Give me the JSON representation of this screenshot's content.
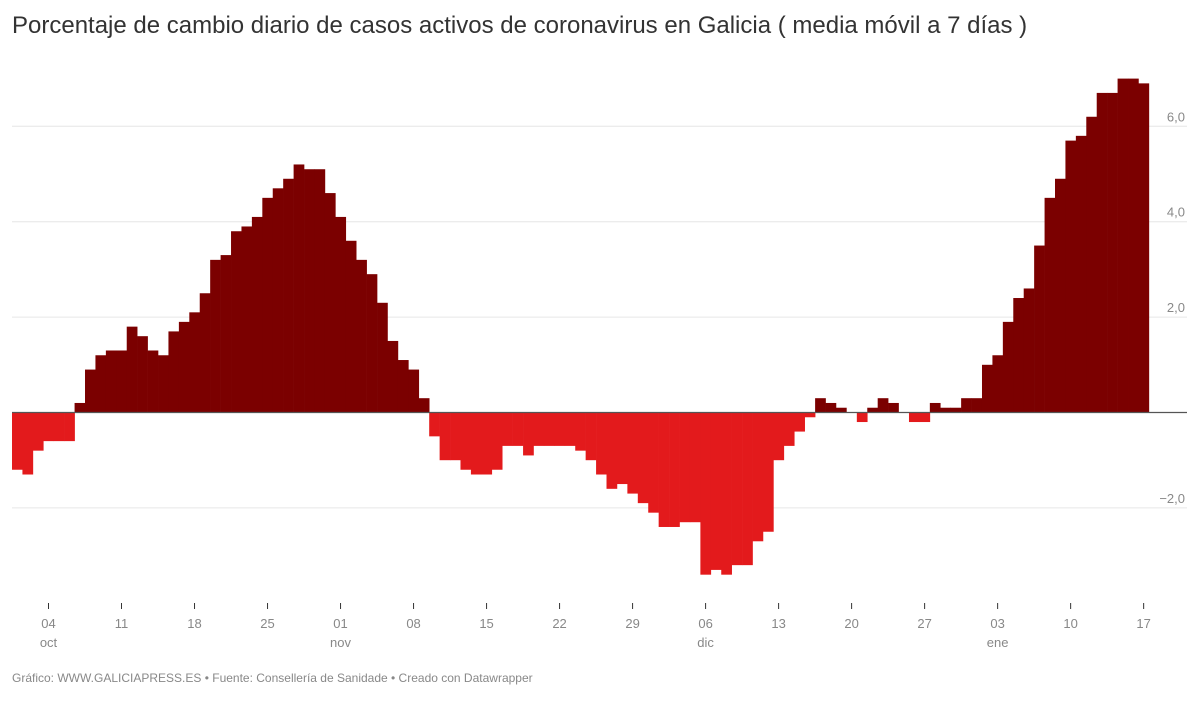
{
  "title": "Porcentaje de cambio diario de casos activos de coronavirus en Galicia ( media móvil a 7 días )",
  "footer": "Gráfico: WWW.GALICIAPRESS.ES • Fuente: Consellería de Sanidade • Creado con Datawrapper",
  "colors": {
    "positive": "#7b0000",
    "negative": "#e31a1c",
    "grid": "#e6e6e6",
    "axis": "#555555",
    "label": "#888888"
  },
  "chart_data": {
    "type": "bar",
    "title": "Porcentaje de cambio diario de casos activos de coronavirus en Galicia ( media móvil a 7 días )",
    "xlabel": "",
    "ylabel": "",
    "ylim": [
      -3.8,
      7.2
    ],
    "grid": true,
    "y_ticks": [
      {
        "value": 6.0,
        "label": "6,0"
      },
      {
        "value": 4.0,
        "label": "4,0"
      },
      {
        "value": 2.0,
        "label": "2,0"
      },
      {
        "value": -2.0,
        "label": "−2,0"
      }
    ],
    "x_ticks": [
      {
        "index": 3,
        "day": "04",
        "month": "oct"
      },
      {
        "index": 10,
        "day": "11",
        "month": ""
      },
      {
        "index": 17,
        "day": "18",
        "month": ""
      },
      {
        "index": 24,
        "day": "25",
        "month": ""
      },
      {
        "index": 31,
        "day": "01",
        "month": "nov"
      },
      {
        "index": 38,
        "day": "08",
        "month": ""
      },
      {
        "index": 45,
        "day": "15",
        "month": ""
      },
      {
        "index": 52,
        "day": "22",
        "month": ""
      },
      {
        "index": 59,
        "day": "29",
        "month": ""
      },
      {
        "index": 66,
        "day": "06",
        "month": "dic"
      },
      {
        "index": 73,
        "day": "13",
        "month": ""
      },
      {
        "index": 80,
        "day": "20",
        "month": ""
      },
      {
        "index": 87,
        "day": "27",
        "month": ""
      },
      {
        "index": 94,
        "day": "03",
        "month": "ene"
      },
      {
        "index": 101,
        "day": "10",
        "month": ""
      },
      {
        "index": 108,
        "day": "17",
        "month": ""
      }
    ],
    "x_start": "01 oct",
    "x_end": "17 ene",
    "values": [
      -1.2,
      -1.3,
      -0.8,
      -0.6,
      -0.6,
      -0.6,
      0.2,
      0.9,
      1.2,
      1.3,
      1.3,
      1.8,
      1.6,
      1.3,
      1.2,
      1.7,
      1.9,
      2.1,
      2.5,
      3.2,
      3.3,
      3.8,
      3.9,
      4.1,
      4.5,
      4.7,
      4.9,
      5.2,
      5.1,
      5.1,
      4.6,
      4.1,
      3.6,
      3.2,
      2.9,
      2.3,
      1.5,
      1.1,
      0.9,
      0.3,
      -0.5,
      -1.0,
      -1.0,
      -1.2,
      -1.3,
      -1.3,
      -1.2,
      -0.7,
      -0.7,
      -0.9,
      -0.7,
      -0.7,
      -0.7,
      -0.7,
      -0.8,
      -1.0,
      -1.3,
      -1.6,
      -1.5,
      -1.7,
      -1.9,
      -2.1,
      -2.4,
      -2.4,
      -2.3,
      -2.3,
      -3.4,
      -3.3,
      -3.4,
      -3.2,
      -3.2,
      -2.7,
      -2.5,
      -1.0,
      -0.7,
      -0.4,
      -0.1,
      0.3,
      0.2,
      0.1,
      0.0,
      -0.2,
      0.1,
      0.3,
      0.2,
      0.0,
      -0.2,
      -0.2,
      0.2,
      0.1,
      0.1,
      0.3,
      0.3,
      1.0,
      1.2,
      1.9,
      2.4,
      2.6,
      3.5,
      4.5,
      4.9,
      5.7,
      5.8,
      6.2,
      6.7,
      6.7,
      7.0,
      7.0,
      6.9
    ]
  }
}
